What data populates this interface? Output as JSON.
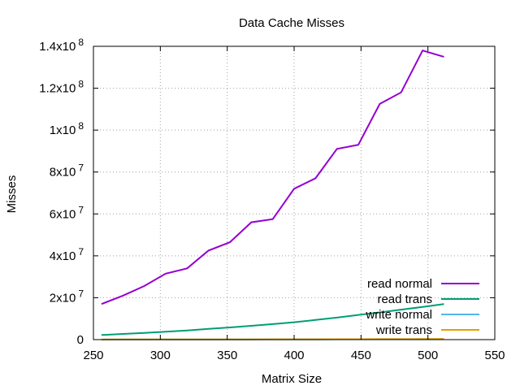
{
  "chart_data": {
    "type": "line",
    "title": "Data Cache Misses",
    "xlabel": "Matrix Size",
    "ylabel": "Misses",
    "xlim": [
      250,
      550
    ],
    "ylim": [
      0,
      140000000
    ],
    "grid": true,
    "legend_position": "bottom-right",
    "x_ticks": [
      {
        "value": 250,
        "label": "250"
      },
      {
        "value": 300,
        "label": "300"
      },
      {
        "value": 350,
        "label": "350"
      },
      {
        "value": 400,
        "label": "400"
      },
      {
        "value": 450,
        "label": "450"
      },
      {
        "value": 500,
        "label": "500"
      },
      {
        "value": 550,
        "label": "550"
      }
    ],
    "y_ticks": [
      {
        "value": 0,
        "mantissa": "0",
        "exp": ""
      },
      {
        "value": 20000000,
        "mantissa": "2x10",
        "exp": "7"
      },
      {
        "value": 40000000,
        "mantissa": "4x10",
        "exp": "7"
      },
      {
        "value": 60000000,
        "mantissa": "6x10",
        "exp": "7"
      },
      {
        "value": 80000000,
        "mantissa": "8x10",
        "exp": "7"
      },
      {
        "value": 100000000,
        "mantissa": "1x10",
        "exp": "8"
      },
      {
        "value": 120000000,
        "mantissa": "1.2x10",
        "exp": "8"
      },
      {
        "value": 140000000,
        "mantissa": "1.4x10",
        "exp": "8"
      }
    ],
    "x": [
      256,
      272,
      288,
      304,
      320,
      336,
      352,
      368,
      384,
      400,
      416,
      432,
      448,
      464,
      480,
      496,
      512
    ],
    "series": [
      {
        "name": "read normal",
        "color": "#9400d3",
        "values": [
          17000000,
          21000000,
          25600000,
          31500000,
          34000000,
          42500000,
          46500000,
          56000000,
          57500000,
          72000000,
          77000000,
          91000000,
          93000000,
          112500000,
          118000000,
          138000000,
          135000000
        ]
      },
      {
        "name": "read trans",
        "color": "#009e73",
        "values": [
          2200000,
          2700000,
          3200000,
          3800000,
          4400000,
          5100000,
          5800000,
          6600000,
          7400000,
          8300000,
          9400000,
          10500000,
          11800000,
          13000000,
          14300000,
          15600000,
          17000000
        ]
      },
      {
        "name": "write normal",
        "color": "#56b4e9",
        "values": [
          50000,
          60000,
          70000,
          80000,
          90000,
          100000,
          110000,
          130000,
          140000,
          160000,
          170000,
          190000,
          210000,
          230000,
          250000,
          270000,
          300000
        ]
      },
      {
        "name": "write trans",
        "color": "#e69f00",
        "values": [
          50000,
          60000,
          70000,
          80000,
          90000,
          100000,
          110000,
          130000,
          140000,
          160000,
          170000,
          190000,
          210000,
          230000,
          250000,
          270000,
          300000
        ]
      }
    ]
  }
}
